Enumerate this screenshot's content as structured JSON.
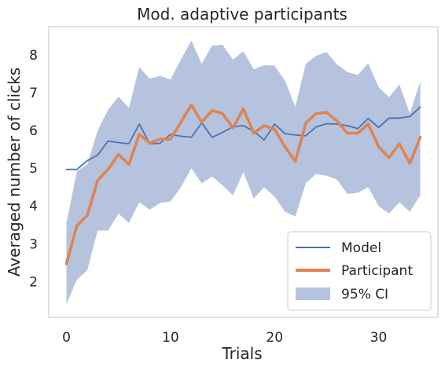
{
  "chart_data": {
    "type": "line",
    "title": "Mod. adaptive participants",
    "xlabel": "Trials",
    "ylabel": "Averaged number of clicks",
    "xlim": [
      -1.7,
      35.7
    ],
    "ylim": [
      1.05,
      8.75
    ],
    "xticks": [
      0,
      10,
      20,
      30
    ],
    "yticks": [
      2,
      3,
      4,
      5,
      6,
      7,
      8
    ],
    "grid": false,
    "legend": {
      "placement": "bottom-right"
    },
    "x": [
      0,
      1,
      2,
      3,
      4,
      5,
      6,
      7,
      8,
      9,
      10,
      11,
      12,
      13,
      14,
      15,
      16,
      17,
      18,
      19,
      20,
      21,
      22,
      23,
      24,
      25,
      26,
      27,
      28,
      29,
      30,
      31,
      32,
      33,
      34
    ],
    "series": [
      {
        "name": "Model",
        "color": "#4c72b0",
        "values": [
          4.97,
          4.97,
          5.2,
          5.35,
          5.72,
          5.68,
          5.65,
          6.17,
          5.65,
          5.66,
          5.9,
          5.85,
          5.82,
          6.2,
          5.82,
          5.95,
          6.1,
          6.13,
          5.98,
          5.75,
          6.17,
          5.92,
          5.88,
          5.86,
          6.1,
          6.18,
          6.17,
          6.13,
          6.05,
          6.32,
          6.08,
          6.33,
          6.33,
          6.37,
          6.62
        ]
      },
      {
        "name": "Participant",
        "color": "#dd8452",
        "values": [
          2.47,
          3.48,
          3.75,
          4.68,
          4.97,
          5.37,
          5.1,
          5.9,
          5.67,
          5.77,
          5.77,
          6.22,
          6.68,
          6.22,
          6.53,
          6.45,
          6.07,
          6.57,
          5.93,
          6.13,
          6.03,
          5.57,
          5.18,
          6.2,
          6.45,
          6.48,
          6.25,
          5.93,
          5.93,
          6.17,
          5.57,
          5.28,
          5.65,
          5.13,
          5.82
        ]
      }
    ],
    "ci": {
      "name": "95% CI",
      "color": "#b5c3de",
      "lower": [
        1.4,
        2.05,
        2.3,
        3.35,
        3.35,
        3.8,
        3.55,
        4.1,
        3.9,
        4.08,
        4.12,
        4.5,
        5.0,
        4.6,
        4.78,
        4.55,
        4.28,
        4.9,
        4.2,
        4.5,
        4.25,
        3.85,
        3.72,
        4.6,
        4.85,
        4.8,
        4.7,
        4.32,
        4.35,
        4.5,
        4.0,
        3.8,
        4.1,
        3.85,
        4.28
      ],
      "upper": [
        3.55,
        4.92,
        5.1,
        6.0,
        6.55,
        6.9,
        6.6,
        7.68,
        7.37,
        7.45,
        7.35,
        7.88,
        8.38,
        7.77,
        8.25,
        8.27,
        7.88,
        8.1,
        7.62,
        7.73,
        7.72,
        7.32,
        6.63,
        7.77,
        7.98,
        8.08,
        7.75,
        7.55,
        7.47,
        7.78,
        7.15,
        6.88,
        7.22,
        6.45,
        7.3
      ]
    }
  }
}
